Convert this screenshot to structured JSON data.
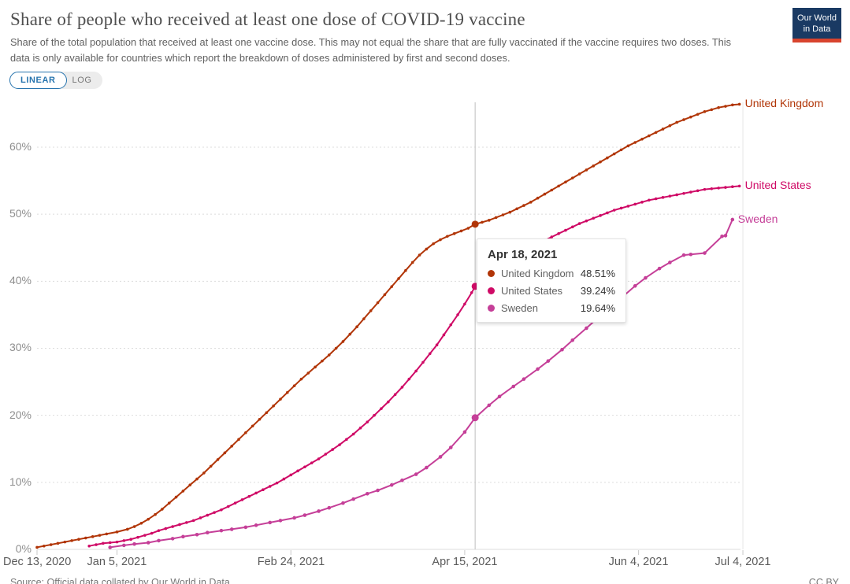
{
  "header": {
    "title": "Share of people who received at least one dose of COVID-19 vaccine",
    "subtitle": "Share of the total population that received at least one vaccine dose. This may not equal the share that are fully vaccinated if the vaccine requires two doses. This data is only available for countries which report the breakdown of doses administered by first and second doses.",
    "logo": {
      "line1": "Our World",
      "line2": "in Data"
    }
  },
  "controls": {
    "linear_label": "LINEAR",
    "log_label": "LOG"
  },
  "chart_data": {
    "type": "line",
    "title": "Share of people who received at least one dose of COVID-19 vaccine",
    "x_axis": {
      "start_date": "Dec 13, 2020",
      "end_date": "Jul 4, 2021",
      "ticks": [
        {
          "label": "Dec 13, 2020",
          "day": 0
        },
        {
          "label": "Jan 5, 2021",
          "day": 23
        },
        {
          "label": "Feb 24, 2021",
          "day": 73
        },
        {
          "label": "Apr 15, 2021",
          "day": 123
        },
        {
          "label": "Jun 4, 2021",
          "day": 173
        },
        {
          "label": "Jul 4, 2021",
          "day": 203
        }
      ]
    },
    "y_axis": {
      "unit": "%",
      "range": [
        0,
        67
      ],
      "grid": "dashed",
      "ticks": [
        {
          "label": "0%",
          "value": 0
        },
        {
          "label": "10%",
          "value": 10
        },
        {
          "label": "20%",
          "value": 20
        },
        {
          "label": "30%",
          "value": 30
        },
        {
          "label": "40%",
          "value": 40
        },
        {
          "label": "50%",
          "value": 50
        },
        {
          "label": "60%",
          "value": 60
        }
      ]
    },
    "highlight": {
      "date": "Apr 18, 2021",
      "day": 126
    },
    "series": [
      {
        "name": "United Kingdom",
        "color": "#b13507",
        "highlight_value": 48.51,
        "points": [
          [
            0,
            0.3
          ],
          [
            2,
            0.5
          ],
          [
            4,
            0.7
          ],
          [
            6,
            0.9
          ],
          [
            8,
            1.1
          ],
          [
            10,
            1.3
          ],
          [
            12,
            1.5
          ],
          [
            14,
            1.7
          ],
          [
            16,
            1.9
          ],
          [
            18,
            2.1
          ],
          [
            20,
            2.3
          ],
          [
            23,
            2.6
          ],
          [
            26,
            3.0
          ],
          [
            28,
            3.4
          ],
          [
            30,
            3.9
          ],
          [
            32,
            4.5
          ],
          [
            34,
            5.2
          ],
          [
            36,
            6.0
          ],
          [
            38,
            6.9
          ],
          [
            40,
            7.8
          ],
          [
            42,
            8.7
          ],
          [
            44,
            9.6
          ],
          [
            46,
            10.5
          ],
          [
            48,
            11.4
          ],
          [
            50,
            12.4
          ],
          [
            52,
            13.4
          ],
          [
            54,
            14.4
          ],
          [
            56,
            15.4
          ],
          [
            58,
            16.4
          ],
          [
            60,
            17.4
          ],
          [
            62,
            18.4
          ],
          [
            64,
            19.4
          ],
          [
            66,
            20.4
          ],
          [
            68,
            21.4
          ],
          [
            70,
            22.4
          ],
          [
            72,
            23.4
          ],
          [
            74,
            24.4
          ],
          [
            76,
            25.4
          ],
          [
            78,
            26.3
          ],
          [
            80,
            27.2
          ],
          [
            82,
            28.1
          ],
          [
            84,
            29.0
          ],
          [
            86,
            30.0
          ],
          [
            88,
            31.0
          ],
          [
            90,
            32.1
          ],
          [
            92,
            33.2
          ],
          [
            94,
            34.4
          ],
          [
            96,
            35.6
          ],
          [
            98,
            36.8
          ],
          [
            100,
            38.0
          ],
          [
            102,
            39.2
          ],
          [
            104,
            40.4
          ],
          [
            106,
            41.6
          ],
          [
            108,
            42.8
          ],
          [
            110,
            43.9
          ],
          [
            112,
            44.8
          ],
          [
            114,
            45.6
          ],
          [
            116,
            46.2
          ],
          [
            118,
            46.7
          ],
          [
            120,
            47.1
          ],
          [
            122,
            47.5
          ],
          [
            124,
            47.9
          ],
          [
            126,
            48.51
          ],
          [
            128,
            48.8
          ],
          [
            130,
            49.1
          ],
          [
            132,
            49.5
          ],
          [
            134,
            49.9
          ],
          [
            136,
            50.3
          ],
          [
            138,
            50.8
          ],
          [
            140,
            51.3
          ],
          [
            142,
            51.8
          ],
          [
            144,
            52.4
          ],
          [
            146,
            53.0
          ],
          [
            148,
            53.6
          ],
          [
            150,
            54.2
          ],
          [
            152,
            54.8
          ],
          [
            154,
            55.4
          ],
          [
            156,
            56.0
          ],
          [
            158,
            56.6
          ],
          [
            160,
            57.2
          ],
          [
            162,
            57.8
          ],
          [
            164,
            58.4
          ],
          [
            166,
            59.0
          ],
          [
            168,
            59.6
          ],
          [
            170,
            60.2
          ],
          [
            172,
            60.7
          ],
          [
            174,
            61.2
          ],
          [
            176,
            61.7
          ],
          [
            178,
            62.2
          ],
          [
            180,
            62.7
          ],
          [
            182,
            63.2
          ],
          [
            184,
            63.7
          ],
          [
            186,
            64.1
          ],
          [
            188,
            64.5
          ],
          [
            190,
            64.9
          ],
          [
            192,
            65.3
          ],
          [
            194,
            65.6
          ],
          [
            196,
            65.9
          ],
          [
            198,
            66.1
          ],
          [
            200,
            66.3
          ],
          [
            202,
            66.4
          ]
        ]
      },
      {
        "name": "United States",
        "color": "#cf0a66",
        "highlight_value": 39.24,
        "points": [
          [
            15,
            0.5
          ],
          [
            17,
            0.7
          ],
          [
            19,
            0.9
          ],
          [
            21,
            1.0
          ],
          [
            23,
            1.1
          ],
          [
            25,
            1.3
          ],
          [
            27,
            1.5
          ],
          [
            29,
            1.8
          ],
          [
            31,
            2.1
          ],
          [
            33,
            2.4
          ],
          [
            35,
            2.8
          ],
          [
            37,
            3.1
          ],
          [
            39,
            3.4
          ],
          [
            41,
            3.7
          ],
          [
            43,
            4.0
          ],
          [
            45,
            4.3
          ],
          [
            47,
            4.7
          ],
          [
            49,
            5.1
          ],
          [
            51,
            5.5
          ],
          [
            53,
            5.9
          ],
          [
            55,
            6.4
          ],
          [
            57,
            6.9
          ],
          [
            59,
            7.4
          ],
          [
            61,
            7.9
          ],
          [
            63,
            8.4
          ],
          [
            65,
            8.9
          ],
          [
            67,
            9.4
          ],
          [
            69,
            9.9
          ],
          [
            71,
            10.5
          ],
          [
            73,
            11.1
          ],
          [
            75,
            11.7
          ],
          [
            77,
            12.3
          ],
          [
            79,
            12.9
          ],
          [
            81,
            13.5
          ],
          [
            83,
            14.2
          ],
          [
            85,
            14.9
          ],
          [
            87,
            15.6
          ],
          [
            89,
            16.4
          ],
          [
            91,
            17.2
          ],
          [
            93,
            18.1
          ],
          [
            95,
            19.0
          ],
          [
            97,
            20.0
          ],
          [
            99,
            21.0
          ],
          [
            101,
            22.0
          ],
          [
            103,
            23.1
          ],
          [
            105,
            24.2
          ],
          [
            107,
            25.4
          ],
          [
            109,
            26.6
          ],
          [
            111,
            27.9
          ],
          [
            113,
            29.2
          ],
          [
            115,
            30.5
          ],
          [
            117,
            32.0
          ],
          [
            119,
            33.5
          ],
          [
            121,
            35.0
          ],
          [
            123,
            36.6
          ],
          [
            125,
            38.3
          ],
          [
            126,
            39.24
          ],
          [
            128,
            40.0
          ],
          [
            130,
            40.8
          ],
          [
            132,
            41.6
          ],
          [
            134,
            42.4
          ],
          [
            136,
            43.1
          ],
          [
            138,
            43.8
          ],
          [
            140,
            44.4
          ],
          [
            142,
            45.0
          ],
          [
            144,
            45.6
          ],
          [
            146,
            46.1
          ],
          [
            148,
            46.6
          ],
          [
            150,
            47.1
          ],
          [
            152,
            47.6
          ],
          [
            154,
            48.1
          ],
          [
            156,
            48.6
          ],
          [
            158,
            49.0
          ],
          [
            160,
            49.4
          ],
          [
            162,
            49.8
          ],
          [
            164,
            50.2
          ],
          [
            166,
            50.6
          ],
          [
            168,
            50.9
          ],
          [
            170,
            51.2
          ],
          [
            172,
            51.5
          ],
          [
            174,
            51.8
          ],
          [
            176,
            52.1
          ],
          [
            178,
            52.3
          ],
          [
            180,
            52.5
          ],
          [
            182,
            52.7
          ],
          [
            184,
            52.9
          ],
          [
            186,
            53.1
          ],
          [
            188,
            53.3
          ],
          [
            190,
            53.5
          ],
          [
            192,
            53.7
          ],
          [
            194,
            53.8
          ],
          [
            196,
            53.9
          ],
          [
            198,
            54.0
          ],
          [
            200,
            54.1
          ],
          [
            202,
            54.2
          ]
        ]
      },
      {
        "name": "Sweden",
        "color": "#c53f98",
        "highlight_value": 19.64,
        "points": [
          [
            21,
            0.3
          ],
          [
            25,
            0.6
          ],
          [
            28,
            0.8
          ],
          [
            32,
            1.0
          ],
          [
            35,
            1.3
          ],
          [
            39,
            1.6
          ],
          [
            42,
            1.9
          ],
          [
            46,
            2.2
          ],
          [
            49,
            2.5
          ],
          [
            53,
            2.8
          ],
          [
            56,
            3.0
          ],
          [
            60,
            3.3
          ],
          [
            63,
            3.6
          ],
          [
            67,
            4.0
          ],
          [
            70,
            4.3
          ],
          [
            74,
            4.7
          ],
          [
            77,
            5.1
          ],
          [
            81,
            5.7
          ],
          [
            84,
            6.2
          ],
          [
            88,
            6.9
          ],
          [
            91,
            7.5
          ],
          [
            95,
            8.3
          ],
          [
            98,
            8.8
          ],
          [
            102,
            9.6
          ],
          [
            105,
            10.3
          ],
          [
            109,
            11.2
          ],
          [
            112,
            12.2
          ],
          [
            116,
            13.8
          ],
          [
            119,
            15.2
          ],
          [
            123,
            17.5
          ],
          [
            126,
            19.64
          ],
          [
            130,
            21.5
          ],
          [
            133,
            22.8
          ],
          [
            137,
            24.3
          ],
          [
            140,
            25.4
          ],
          [
            144,
            26.9
          ],
          [
            147,
            28.1
          ],
          [
            151,
            29.8
          ],
          [
            154,
            31.2
          ],
          [
            158,
            33.0
          ],
          [
            161,
            34.4
          ],
          [
            165,
            36.2
          ],
          [
            168,
            37.5
          ],
          [
            172,
            39.3
          ],
          [
            175,
            40.5
          ],
          [
            179,
            41.9
          ],
          [
            182,
            42.8
          ],
          [
            186,
            43.9
          ],
          [
            188,
            44.0
          ],
          [
            192,
            44.2
          ],
          [
            197,
            46.7
          ],
          [
            198,
            46.8
          ],
          [
            200,
            49.2
          ]
        ]
      }
    ]
  },
  "tooltip": {
    "date": "Apr 18, 2021",
    "rows": [
      {
        "name": "United Kingdom",
        "value": "48.51%"
      },
      {
        "name": "United States",
        "value": "39.24%"
      },
      {
        "name": "Sweden",
        "value": "19.64%"
      }
    ]
  },
  "footer": {
    "source": "Source: Official data collated by Our World in Data",
    "license": "CC BY"
  }
}
